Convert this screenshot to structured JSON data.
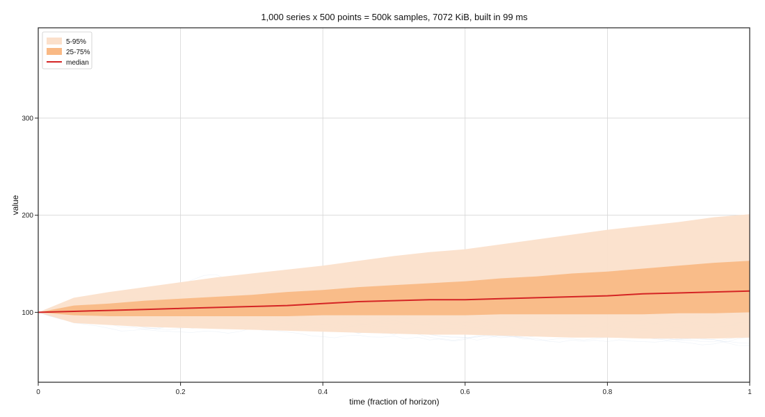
{
  "chart_data": {
    "type": "area",
    "title": "1,000 series x 500 points = 500k samples, 7072 KiB, built in 99 ms",
    "xlabel": "time (fraction of horizon)",
    "ylabel": "value",
    "xlim": [
      0,
      1
    ],
    "ylim": [
      28,
      393
    ],
    "x_ticks": [
      0,
      0.2,
      0.4,
      0.6,
      0.8,
      1
    ],
    "x_tick_labels": [
      "0",
      "0.2",
      "0.4",
      "0.6",
      "0.8",
      "1"
    ],
    "y_ticks": [
      100,
      200,
      300
    ],
    "y_tick_labels": [
      "100",
      "200",
      "300"
    ],
    "grid": true,
    "legend_position": "top-left",
    "colors": {
      "band_outer": "#fbe0cb",
      "band_inner": "#f9b985",
      "median": "#d42424",
      "spaghetti": "#dfe8f2",
      "grid": "#d6d6d6"
    },
    "x": [
      0,
      0.05,
      0.1,
      0.15,
      0.2,
      0.25,
      0.3,
      0.35,
      0.4,
      0.45,
      0.5,
      0.55,
      0.6,
      0.65,
      0.7,
      0.75,
      0.8,
      0.85,
      0.9,
      0.95,
      1.0
    ],
    "series": [
      {
        "name": "5-95%",
        "type": "band",
        "lower": [
          100,
          89,
          87,
          85,
          84,
          83,
          82,
          81,
          80,
          79,
          78,
          77,
          77,
          76,
          75,
          74,
          74,
          73,
          73,
          73,
          74
        ],
        "upper": [
          100,
          115,
          121,
          126,
          131,
          136,
          140,
          144,
          148,
          153,
          158,
          162,
          165,
          170,
          175,
          180,
          185,
          189,
          193,
          198,
          201
        ]
      },
      {
        "name": "25-75%",
        "type": "band",
        "lower": [
          100,
          97,
          96,
          96,
          96,
          96,
          96,
          96,
          97,
          97,
          97,
          97,
          97,
          98,
          98,
          98,
          98,
          98,
          99,
          99,
          100
        ],
        "upper": [
          100,
          107,
          109,
          112,
          114,
          116,
          118,
          121,
          123,
          126,
          128,
          130,
          132,
          135,
          137,
          140,
          142,
          145,
          148,
          151,
          153
        ]
      },
      {
        "name": "median",
        "type": "line",
        "values": [
          100,
          101,
          102,
          103,
          104,
          105,
          106,
          107,
          109,
          111,
          112,
          113,
          113,
          114,
          115,
          116,
          117,
          119,
          120,
          121,
          122
        ]
      }
    ]
  }
}
